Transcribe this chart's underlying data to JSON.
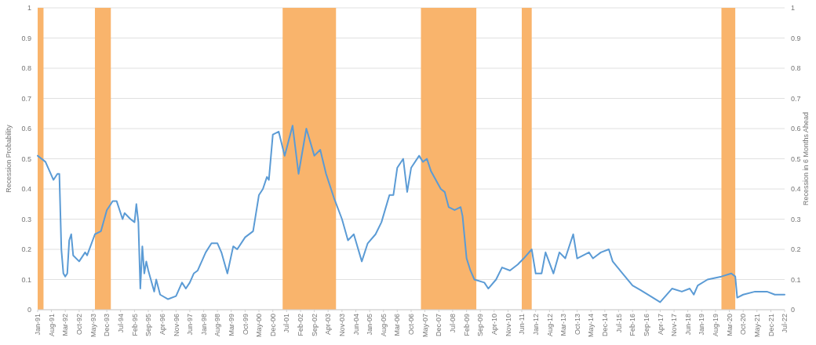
{
  "chart_data": {
    "type": "line",
    "ylabel": "Recession Probability",
    "y2label": "Recession in 6 Months Ahead",
    "xlim": [
      "1991-01",
      "2022-07"
    ],
    "xticks": [
      {
        "value": "1991-01",
        "label": "Jan-91"
      },
      {
        "value": "1991-08",
        "label": "Aug-91"
      },
      {
        "value": "1992-03",
        "label": "Mar-92"
      },
      {
        "value": "1992-10",
        "label": "Oct-92"
      },
      {
        "value": "1993-05",
        "label": "May-93"
      },
      {
        "value": "1993-12",
        "label": "Dec-93"
      },
      {
        "value": "1994-07",
        "label": "Jul-94"
      },
      {
        "value": "1995-02",
        "label": "Feb-95"
      },
      {
        "value": "1995-09",
        "label": "Sep-95"
      },
      {
        "value": "1996-04",
        "label": "Apr-96"
      },
      {
        "value": "1996-11",
        "label": "Nov-96"
      },
      {
        "value": "1997-06",
        "label": "Jun-97"
      },
      {
        "value": "1998-01",
        "label": "Jan-98"
      },
      {
        "value": "1998-08",
        "label": "Aug-98"
      },
      {
        "value": "1999-03",
        "label": "Mar-99"
      },
      {
        "value": "1999-10",
        "label": "Oct-99"
      },
      {
        "value": "2000-05",
        "label": "May-00"
      },
      {
        "value": "2000-12",
        "label": "Dec-00"
      },
      {
        "value": "2001-07",
        "label": "Jul-01"
      },
      {
        "value": "2002-02",
        "label": "Feb-02"
      },
      {
        "value": "2002-09",
        "label": "Sep-02"
      },
      {
        "value": "2003-04",
        "label": "Apr-03"
      },
      {
        "value": "2003-11",
        "label": "Nov-03"
      },
      {
        "value": "2004-06",
        "label": "Jun-04"
      },
      {
        "value": "2005-01",
        "label": "Jan-05"
      },
      {
        "value": "2005-08",
        "label": "Aug-05"
      },
      {
        "value": "2006-03",
        "label": "Mar-06"
      },
      {
        "value": "2006-10",
        "label": "Oct-06"
      },
      {
        "value": "2007-05",
        "label": "May-07"
      },
      {
        "value": "2007-12",
        "label": "Dec-07"
      },
      {
        "value": "2008-07",
        "label": "Jul-08"
      },
      {
        "value": "2009-02",
        "label": "Feb-09"
      },
      {
        "value": "2009-09",
        "label": "Sep-09"
      },
      {
        "value": "2010-04",
        "label": "Apr-10"
      },
      {
        "value": "2010-11",
        "label": "Nov-10"
      },
      {
        "value": "2011-06",
        "label": "Jun-11"
      },
      {
        "value": "2012-01",
        "label": "Jan-12"
      },
      {
        "value": "2012-08",
        "label": "Aug-12"
      },
      {
        "value": "2013-03",
        "label": "Mar-13"
      },
      {
        "value": "2013-10",
        "label": "Oct-13"
      },
      {
        "value": "2014-05",
        "label": "May-14"
      },
      {
        "value": "2014-12",
        "label": "Dec-14"
      },
      {
        "value": "2015-07",
        "label": "Jul-15"
      },
      {
        "value": "2016-02",
        "label": "Feb-16"
      },
      {
        "value": "2016-09",
        "label": "Sep-16"
      },
      {
        "value": "2017-04",
        "label": "Apr-17"
      },
      {
        "value": "2017-11",
        "label": "Nov-17"
      },
      {
        "value": "2018-06",
        "label": "Jun-18"
      },
      {
        "value": "2019-01",
        "label": "Jan-19"
      },
      {
        "value": "2019-08",
        "label": "Aug-19"
      },
      {
        "value": "2020-03",
        "label": "Mar-20"
      },
      {
        "value": "2020-10",
        "label": "Oct-20"
      },
      {
        "value": "2021-05",
        "label": "May-21"
      },
      {
        "value": "2021-12",
        "label": "Dec-21"
      },
      {
        "value": "2022-07",
        "label": "Jul-22"
      }
    ],
    "ylim": [
      0,
      1
    ],
    "yticks": [
      0,
      0.1,
      0.2,
      0.3,
      0.4,
      0.5,
      0.6,
      0.7,
      0.8,
      0.9,
      1
    ],
    "y2lim": [
      0,
      1
    ],
    "y2ticks": [
      0,
      0.1,
      0.2,
      0.3,
      0.4,
      0.5,
      0.6,
      0.7,
      0.8,
      0.9,
      1
    ],
    "grid": "y",
    "bands": [
      {
        "axis": "x",
        "from": "1991-01",
        "to": "1991-04",
        "color": "#f9b46c"
      },
      {
        "axis": "x",
        "from": "1993-06",
        "to": "1994-02",
        "color": "#f9b46c"
      },
      {
        "axis": "x",
        "from": "2001-05",
        "to": "2003-08",
        "color": "#f9b46c"
      },
      {
        "axis": "x",
        "from": "2007-03",
        "to": "2009-07",
        "color": "#f9b46c"
      },
      {
        "axis": "x",
        "from": "2011-06",
        "to": "2011-11",
        "color": "#f9b46c"
      },
      {
        "axis": "x",
        "from": "2019-11",
        "to": "2020-06",
        "color": "#f9b46c"
      }
    ],
    "series": [
      {
        "color": "#5b9bd5",
        "x": [
          "1991-01",
          "1991-05",
          "1991-09",
          "1991-11",
          "1991-12",
          "1992-01",
          "1992-02",
          "1992-03",
          "1992-04",
          "1992-05",
          "1992-06",
          "1992-07",
          "1992-10",
          "1993-01",
          "1993-02",
          "1993-06",
          "1993-09",
          "1993-12",
          "1994-02",
          "1994-03",
          "1994-05",
          "1994-08",
          "1994-09",
          "1994-12",
          "1995-02",
          "1995-03",
          "1995-04",
          "1995-05",
          "1995-06",
          "1995-07",
          "1995-08",
          "1995-09",
          "1995-12",
          "1996-01",
          "1996-03",
          "1996-07",
          "1996-11",
          "1997-02",
          "1997-04",
          "1997-06",
          "1997-08",
          "1997-10",
          "1998-02",
          "1998-05",
          "1998-08",
          "1998-10",
          "1999-01",
          "1999-04",
          "1999-06",
          "1999-10",
          "2000-02",
          "2000-05",
          "2000-07",
          "2000-09",
          "2000-10",
          "2000-12",
          "2001-03",
          "2001-06",
          "2001-10",
          "2002-01",
          "2002-05",
          "2002-09",
          "2002-12",
          "2003-03",
          "2003-07",
          "2003-11",
          "2004-02",
          "2004-05",
          "2004-09",
          "2004-12",
          "2005-04",
          "2005-07",
          "2005-11",
          "2006-01",
          "2006-03",
          "2006-06",
          "2006-08",
          "2006-10",
          "2007-02",
          "2007-04",
          "2007-06",
          "2007-08",
          "2008-01",
          "2008-03",
          "2008-05",
          "2008-08",
          "2008-11",
          "2008-12",
          "2009-02",
          "2009-04",
          "2009-06",
          "2009-11",
          "2010-01",
          "2010-05",
          "2010-08",
          "2010-12",
          "2011-04",
          "2011-07",
          "2011-11",
          "2012-01",
          "2012-04",
          "2012-06",
          "2012-10",
          "2013-01",
          "2013-04",
          "2013-08",
          "2013-10",
          "2014-04",
          "2014-06",
          "2014-10",
          "2015-02",
          "2015-04",
          "2015-09",
          "2016-02",
          "2016-06",
          "2016-11",
          "2017-04",
          "2017-10",
          "2018-03",
          "2018-07",
          "2018-09",
          "2018-11",
          "2019-04",
          "2019-11",
          "2020-04",
          "2020-06",
          "2020-07",
          "2020-10",
          "2021-04",
          "2021-10",
          "2022-02",
          "2022-07"
        ],
        "values": [
          0.51,
          0.49,
          0.43,
          0.45,
          0.45,
          0.2,
          0.12,
          0.11,
          0.12,
          0.23,
          0.25,
          0.18,
          0.16,
          0.19,
          0.18,
          0.25,
          0.26,
          0.33,
          0.35,
          0.36,
          0.36,
          0.3,
          0.32,
          0.3,
          0.29,
          0.35,
          0.29,
          0.07,
          0.21,
          0.12,
          0.16,
          0.13,
          0.06,
          0.1,
          0.05,
          0.035,
          0.045,
          0.09,
          0.07,
          0.09,
          0.12,
          0.13,
          0.19,
          0.22,
          0.22,
          0.19,
          0.12,
          0.21,
          0.2,
          0.24,
          0.26,
          0.38,
          0.4,
          0.44,
          0.43,
          0.58,
          0.59,
          0.51,
          0.61,
          0.45,
          0.6,
          0.51,
          0.53,
          0.45,
          0.37,
          0.3,
          0.23,
          0.25,
          0.16,
          0.22,
          0.25,
          0.29,
          0.38,
          0.38,
          0.47,
          0.5,
          0.39,
          0.47,
          0.51,
          0.49,
          0.5,
          0.46,
          0.4,
          0.39,
          0.34,
          0.33,
          0.34,
          0.31,
          0.17,
          0.13,
          0.1,
          0.09,
          0.07,
          0.1,
          0.14,
          0.13,
          0.15,
          0.17,
          0.2,
          0.12,
          0.12,
          0.19,
          0.12,
          0.19,
          0.17,
          0.25,
          0.17,
          0.19,
          0.17,
          0.19,
          0.2,
          0.16,
          0.12,
          0.08,
          0.065,
          0.045,
          0.025,
          0.07,
          0.06,
          0.07,
          0.05,
          0.08,
          0.1,
          0.11,
          0.12,
          0.11,
          0.04,
          0.05,
          0.06,
          0.06,
          0.05,
          0.05
        ]
      }
    ]
  }
}
